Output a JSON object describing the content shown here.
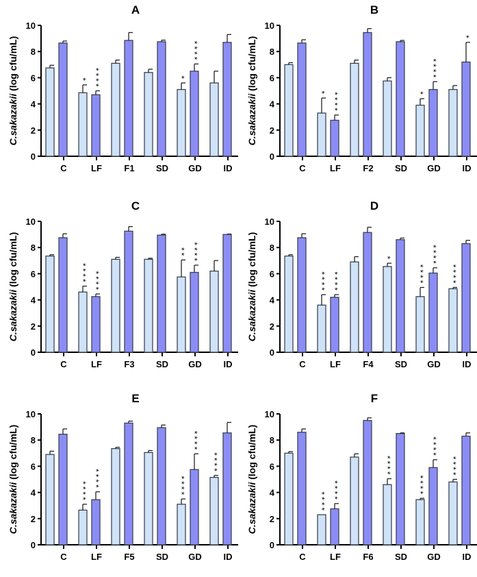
{
  "chart_data": [
    {
      "type": "bar",
      "title": "A",
      "ylabel_italic": "C.sakazakii",
      "ylabel_rest": " (log cfu/mL)",
      "ylim": [
        0,
        10
      ],
      "yticks": [
        "0",
        "2",
        "4",
        "6",
        "8",
        "10"
      ],
      "categories": [
        "C",
        "LF",
        "F1",
        "SD",
        "GD",
        "ID"
      ],
      "series": [
        {
          "name": "light",
          "values": [
            6.75,
            4.85,
            7.1,
            6.4,
            5.1,
            5.6
          ],
          "errors": [
            0.2,
            0.6,
            0.25,
            0.25,
            0.5,
            0.9
          ],
          "stars": [
            "",
            "*",
            "",
            "",
            "*",
            ""
          ]
        },
        {
          "name": "dark",
          "values": [
            8.65,
            4.7,
            8.85,
            8.75,
            6.5,
            8.7
          ],
          "errors": [
            0.15,
            0.3,
            0.6,
            0.12,
            0.55,
            0.6
          ],
          "stars": [
            "",
            "****",
            "",
            "",
            "****",
            ""
          ]
        }
      ]
    },
    {
      "type": "bar",
      "title": "B",
      "ylabel_italic": "C.sakazakii",
      "ylabel_rest": " (log cfu/mL)",
      "ylim": [
        0,
        10
      ],
      "yticks": [
        "0",
        "2",
        "4",
        "6",
        "8",
        "10"
      ],
      "categories": [
        "C",
        "LF",
        "F2",
        "SD",
        "GD",
        "ID"
      ],
      "series": [
        {
          "name": "light",
          "values": [
            7.0,
            3.3,
            7.1,
            5.75,
            3.9,
            5.1
          ],
          "errors": [
            0.15,
            1.15,
            0.25,
            0.25,
            0.5,
            0.3
          ],
          "stars": [
            "",
            "*",
            "",
            "",
            "*",
            ""
          ]
        },
        {
          "name": "dark",
          "values": [
            8.65,
            2.75,
            9.45,
            8.75,
            5.1,
            7.2
          ],
          "errors": [
            0.25,
            0.4,
            0.3,
            0.1,
            0.6,
            1.5
          ],
          "stars": [
            "",
            "****",
            "",
            "",
            "****",
            "*"
          ]
        }
      ]
    },
    {
      "type": "bar",
      "title": "C",
      "ylabel_italic": "C.sakazakii",
      "ylabel_rest": " (log cfu/mL)",
      "ylim": [
        0,
        10
      ],
      "yticks": [
        "0",
        "2",
        "4",
        "6",
        "8",
        "10"
      ],
      "categories": [
        "C",
        "LF",
        "F3",
        "SD",
        "GD",
        "ID"
      ],
      "series": [
        {
          "name": "light",
          "values": [
            7.35,
            4.6,
            7.1,
            7.1,
            5.75,
            6.2
          ],
          "errors": [
            0.1,
            0.45,
            0.15,
            0.08,
            1.3,
            0.8
          ],
          "stars": [
            "",
            "****",
            "",
            "",
            "**",
            ""
          ]
        },
        {
          "name": "dark",
          "values": [
            8.75,
            4.25,
            9.25,
            8.95,
            6.1,
            9.0
          ],
          "errors": [
            0.3,
            0.2,
            0.35,
            0.07,
            0.55,
            0.03
          ],
          "stars": [
            "",
            "****",
            "",
            "",
            "****",
            ""
          ]
        }
      ]
    },
    {
      "type": "bar",
      "title": "D",
      "ylabel_italic": "C.sakazakii",
      "ylabel_rest": " (log cfu/mL)",
      "ylim": [
        0,
        10
      ],
      "yticks": [
        "0",
        "2",
        "4",
        "6",
        "8",
        "10"
      ],
      "categories": [
        "C",
        "LF",
        "F4",
        "SD",
        "GD",
        "ID"
      ],
      "series": [
        {
          "name": "light",
          "values": [
            7.35,
            3.6,
            6.9,
            6.55,
            4.25,
            4.85
          ],
          "errors": [
            0.1,
            0.8,
            0.4,
            0.25,
            0.7,
            0.1
          ],
          "stars": [
            "",
            "****",
            "",
            "*",
            "****",
            "****"
          ]
        },
        {
          "name": "dark",
          "values": [
            8.75,
            4.2,
            9.15,
            8.6,
            6.05,
            8.3
          ],
          "errors": [
            0.3,
            0.2,
            0.4,
            0.12,
            0.4,
            0.25
          ],
          "stars": [
            "",
            "****",
            "",
            "",
            "****",
            ""
          ]
        }
      ]
    },
    {
      "type": "bar",
      "title": "E",
      "ylabel_italic": "C.sakazakii",
      "ylabel_rest": " (log cfu/mL)",
      "ylim": [
        0,
        10
      ],
      "yticks": [
        "0",
        "2",
        "4",
        "6",
        "8",
        "10"
      ],
      "categories": [
        "C",
        "LF",
        "F5",
        "SD",
        "GD",
        "ID"
      ],
      "series": [
        {
          "name": "light",
          "values": [
            6.9,
            2.65,
            7.35,
            7.05,
            3.1,
            5.15
          ],
          "errors": [
            0.25,
            0.45,
            0.1,
            0.15,
            0.4,
            0.15
          ],
          "stars": [
            "",
            "****",
            "",
            "",
            "****",
            "****"
          ]
        },
        {
          "name": "dark",
          "values": [
            8.45,
            3.45,
            9.3,
            8.95,
            5.75,
            8.55
          ],
          "errors": [
            0.4,
            0.6,
            0.15,
            0.2,
            1.2,
            0.8
          ],
          "stars": [
            "",
            "****",
            "",
            "",
            "****",
            ""
          ]
        }
      ]
    },
    {
      "type": "bar",
      "title": "F",
      "ylabel_italic": "C.sakazakii",
      "ylabel_rest": " (log cfu/mL)",
      "ylim": [
        0,
        10
      ],
      "yticks": [
        "0",
        "2",
        "4",
        "6",
        "8",
        "10"
      ],
      "categories": [
        "C",
        "LF",
        "F6",
        "SD",
        "GD",
        "ID"
      ],
      "series": [
        {
          "name": "light",
          "values": [
            7.0,
            2.3,
            6.7,
            4.6,
            3.45,
            4.8
          ],
          "errors": [
            0.12,
            0,
            0.25,
            0.45,
            0.1,
            0.2
          ],
          "stars": [
            "",
            "****",
            "",
            "****",
            "****",
            "****"
          ]
        },
        {
          "name": "dark",
          "values": [
            8.6,
            2.75,
            9.5,
            8.5,
            5.9,
            8.3
          ],
          "errors": [
            0.25,
            0.4,
            0.2,
            0.05,
            0.6,
            0.25
          ],
          "stars": [
            "",
            "****",
            "",
            "",
            "****",
            ""
          ]
        }
      ]
    }
  ],
  "colors": {
    "light": "#cfe2f8",
    "dark": "#8c8cf6",
    "stroke": "#3c4550"
  }
}
